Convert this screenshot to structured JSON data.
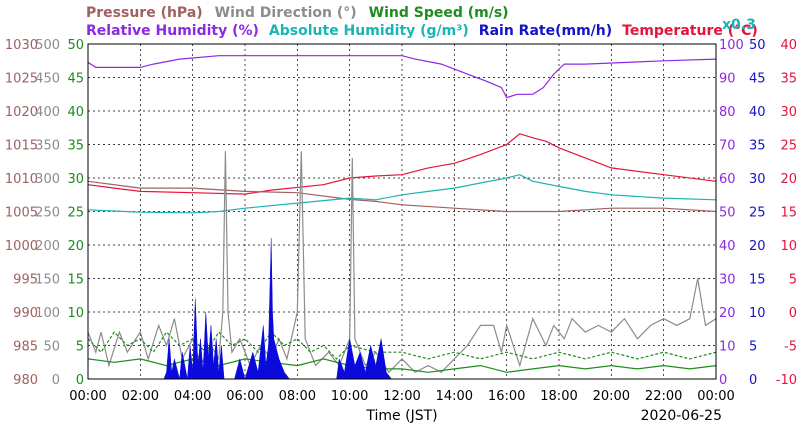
{
  "chart_data": {
    "type": "line",
    "legend_row1": [
      {
        "text": "Pressure (hPa)",
        "color": "#a06060"
      },
      {
        "text": "Wind Direction (°)",
        "color": "#8c8c8c"
      },
      {
        "text": "Wind Speed (m/s)",
        "color": "#1e8c1e"
      }
    ],
    "legend_row2": [
      {
        "text": "Relative Humidity (%)",
        "color": "#8c28e6"
      },
      {
        "text": "Absolute Humidity (g/m³)",
        "color": "#19b4b4"
      },
      {
        "text": "Rain Rate(mm/h)",
        "color": "#1414c8"
      },
      {
        "text": "Temperature (°C)",
        "color": "#e6143c"
      }
    ],
    "rain_scale_note": "x0.3",
    "xlabel": "Time (JST)",
    "date": "2020-06-25",
    "x_ticks": [
      "00:00",
      "02:00",
      "04:00",
      "06:00",
      "08:00",
      "10:00",
      "12:00",
      "14:00",
      "16:00",
      "18:00",
      "20:00",
      "22:00",
      "00:00"
    ],
    "x_range_hours": [
      0,
      24
    ],
    "grid": true,
    "axes": {
      "pressure": {
        "min": 980,
        "max": 1030,
        "ticks": [
          "1030",
          "1025",
          "1020",
          "1015",
          "1010",
          "1005",
          "1000",
          "995",
          "990",
          "985",
          "980"
        ],
        "color": "#a06060"
      },
      "wind_direction": {
        "min": 0,
        "max": 500,
        "ticks": [
          "500",
          "450",
          "400",
          "350",
          "300",
          "250",
          "200",
          "150",
          "100",
          "50",
          "0"
        ],
        "color": "#8c8c8c"
      },
      "wind_speed": {
        "min": 0,
        "max": 50,
        "ticks": [
          "50",
          "45",
          "40",
          "35",
          "30",
          "25",
          "20",
          "15",
          "10",
          "5",
          "0"
        ],
        "color": "#1e8c1e"
      },
      "humidity": {
        "min": 0,
        "max": 100,
        "ticks": [
          "100",
          "90",
          "80",
          "70",
          "60",
          "50",
          "40",
          "30",
          "20",
          "10",
          "0"
        ],
        "color": "#8c28e6"
      },
      "rain_rate": {
        "min": 0,
        "max": 50,
        "ticks": [
          "50",
          "45",
          "40",
          "35",
          "30",
          "25",
          "20",
          "15",
          "10",
          "5",
          "0"
        ],
        "color": "#1414c8"
      },
      "temperature": {
        "min": -10,
        "max": 40,
        "ticks": [
          "40",
          "35",
          "30",
          "25",
          "20",
          "15",
          "10",
          "5",
          "0",
          "-5",
          "-10"
        ],
        "color": "#e6143c"
      }
    },
    "series": [
      {
        "name": "Relative Humidity (%)",
        "axis": "humidity",
        "color": "#8c28e6",
        "points": [
          [
            0,
            94.5
          ],
          [
            0.3,
            93
          ],
          [
            2,
            93
          ],
          [
            2.5,
            94
          ],
          [
            3.5,
            95.5
          ],
          [
            5,
            96.5
          ],
          [
            10,
            96.5
          ],
          [
            12,
            96.5
          ],
          [
            12.5,
            95.5
          ],
          [
            13.5,
            94
          ],
          [
            14.5,
            91
          ],
          [
            15.2,
            89
          ],
          [
            15.8,
            87
          ],
          [
            16,
            84
          ],
          [
            16.4,
            85
          ],
          [
            17,
            85
          ],
          [
            17.4,
            87
          ],
          [
            17.8,
            91
          ],
          [
            18.2,
            94
          ],
          [
            19,
            94
          ],
          [
            22,
            95
          ],
          [
            24,
            95.5
          ]
        ]
      },
      {
        "name": "Temperature (°C)",
        "axis": "temperature",
        "color": "#e6143c",
        "points": [
          [
            0,
            19
          ],
          [
            1,
            18.5
          ],
          [
            2,
            18
          ],
          [
            4,
            17.8
          ],
          [
            6,
            17.6
          ],
          [
            7,
            18.2
          ],
          [
            9,
            19
          ],
          [
            10,
            20
          ],
          [
            11,
            20.3
          ],
          [
            12,
            20.5
          ],
          [
            13,
            21.5
          ],
          [
            14,
            22.2
          ],
          [
            15,
            23.5
          ],
          [
            16,
            25
          ],
          [
            16.5,
            26.6
          ],
          [
            17,
            26
          ],
          [
            17.5,
            25.5
          ],
          [
            18,
            24.5
          ],
          [
            19,
            23
          ],
          [
            20,
            21.5
          ],
          [
            22,
            20.5
          ],
          [
            24,
            19.5
          ]
        ]
      },
      {
        "name": "Pressure (hPa)",
        "axis": "pressure",
        "color": "#a06060",
        "points": [
          [
            0,
            1009.5
          ],
          [
            2,
            1008.5
          ],
          [
            4,
            1008.5
          ],
          [
            6,
            1008
          ],
          [
            8,
            1007.8
          ],
          [
            10,
            1006.8
          ],
          [
            11,
            1006.5
          ],
          [
            12,
            1006
          ],
          [
            14,
            1005.5
          ],
          [
            16,
            1005
          ],
          [
            18,
            1005
          ],
          [
            20,
            1005.5
          ],
          [
            22,
            1005.5
          ],
          [
            24,
            1005
          ]
        ]
      },
      {
        "name": "Absolute Humidity (g/m³)",
        "axis": "humidity",
        "color": "#19b4b4",
        "points": [
          [
            0,
            50.5
          ],
          [
            2,
            49.8
          ],
          [
            4,
            49.6
          ],
          [
            5,
            50
          ],
          [
            6,
            51
          ],
          [
            8,
            52.5
          ],
          [
            10,
            54
          ],
          [
            11,
            53.5
          ],
          [
            12,
            55
          ],
          [
            13,
            56
          ],
          [
            14,
            57
          ],
          [
            15,
            58.5
          ],
          [
            16,
            60
          ],
          [
            16.5,
            61
          ],
          [
            17,
            59
          ],
          [
            18,
            57.5
          ],
          [
            19,
            56
          ],
          [
            20,
            55
          ],
          [
            22,
            54
          ],
          [
            24,
            53.5
          ]
        ]
      },
      {
        "name": "Wind Direction (°)",
        "axis": "wind_direction",
        "color": "#8c8c8c",
        "points": [
          [
            0,
            70
          ],
          [
            0.3,
            40
          ],
          [
            0.5,
            70
          ],
          [
            0.8,
            20
          ],
          [
            1.2,
            70
          ],
          [
            1.5,
            40
          ],
          [
            2,
            70
          ],
          [
            2.3,
            30
          ],
          [
            2.7,
            80
          ],
          [
            3,
            50
          ],
          [
            3.3,
            90
          ],
          [
            3.6,
            30
          ],
          [
            4,
            60
          ],
          [
            4.3,
            20
          ],
          [
            4.7,
            50
          ],
          [
            5,
            30
          ],
          [
            5.15,
            100
          ],
          [
            5.25,
            340
          ],
          [
            5.35,
            100
          ],
          [
            5.5,
            40
          ],
          [
            5.8,
            60
          ],
          [
            6.2,
            20
          ],
          [
            6.6,
            50
          ],
          [
            7,
            30
          ],
          [
            7.3,
            60
          ],
          [
            7.6,
            30
          ],
          [
            8,
            100
          ],
          [
            8.15,
            340
          ],
          [
            8.3,
            60
          ],
          [
            8.7,
            20
          ],
          [
            9.2,
            40
          ],
          [
            9.6,
            20
          ],
          [
            10,
            60
          ],
          [
            10.1,
            330
          ],
          [
            10.2,
            60
          ],
          [
            10.6,
            20
          ],
          [
            11,
            40
          ],
          [
            11.5,
            10
          ],
          [
            12,
            30
          ],
          [
            12.5,
            10
          ],
          [
            13,
            20
          ],
          [
            13.5,
            10
          ],
          [
            14,
            30
          ],
          [
            14.5,
            50
          ],
          [
            15,
            80
          ],
          [
            15.5,
            80
          ],
          [
            15.8,
            40
          ],
          [
            16,
            80
          ],
          [
            16.5,
            20
          ],
          [
            17,
            90
          ],
          [
            17.5,
            50
          ],
          [
            17.8,
            80
          ],
          [
            18.2,
            60
          ],
          [
            18.5,
            90
          ],
          [
            19,
            70
          ],
          [
            19.5,
            80
          ],
          [
            20,
            70
          ],
          [
            20.5,
            90
          ],
          [
            21,
            60
          ],
          [
            21.5,
            80
          ],
          [
            22,
            90
          ],
          [
            22.5,
            80
          ],
          [
            23,
            90
          ],
          [
            23.3,
            150
          ],
          [
            23.6,
            80
          ],
          [
            24,
            90
          ]
        ]
      },
      {
        "name": "Wind Speed (m/s)",
        "axis": "wind_speed",
        "color": "#1e8c1e",
        "points": [
          [
            0,
            3
          ],
          [
            1,
            2.5
          ],
          [
            2,
            3
          ],
          [
            3,
            2
          ],
          [
            4,
            3
          ],
          [
            5,
            2
          ],
          [
            6,
            3
          ],
          [
            7,
            2.5
          ],
          [
            8,
            2
          ],
          [
            9,
            3
          ],
          [
            10,
            2
          ],
          [
            11,
            1.5
          ],
          [
            12,
            1.5
          ],
          [
            13,
            1
          ],
          [
            14,
            1.5
          ],
          [
            15,
            2
          ],
          [
            16,
            1
          ],
          [
            17,
            1.5
          ],
          [
            18,
            2
          ],
          [
            19,
            1.5
          ],
          [
            20,
            2
          ],
          [
            21,
            1.5
          ],
          [
            22,
            2
          ],
          [
            23,
            1.5
          ],
          [
            24,
            2
          ]
        ]
      },
      {
        "name": "Wind Speed gust",
        "axis": "wind_speed",
        "color": "#1e8c1e",
        "dashed": true,
        "points": [
          [
            0,
            6
          ],
          [
            0.5,
            4
          ],
          [
            1,
            7
          ],
          [
            1.5,
            5
          ],
          [
            2,
            6
          ],
          [
            2.5,
            4
          ],
          [
            3,
            7
          ],
          [
            3.5,
            5
          ],
          [
            4,
            6
          ],
          [
            4.5,
            4
          ],
          [
            5,
            7
          ],
          [
            5.5,
            5
          ],
          [
            6,
            6
          ],
          [
            6.5,
            4
          ],
          [
            7,
            7
          ],
          [
            7.5,
            5
          ],
          [
            8,
            6
          ],
          [
            8.5,
            4
          ],
          [
            9,
            5
          ],
          [
            9.5,
            3
          ],
          [
            10,
            5
          ],
          [
            11,
            4
          ],
          [
            12,
            4
          ],
          [
            13,
            3
          ],
          [
            14,
            4
          ],
          [
            15,
            3
          ],
          [
            16,
            4
          ],
          [
            17,
            3
          ],
          [
            18,
            4
          ],
          [
            19,
            3
          ],
          [
            20,
            4
          ],
          [
            21,
            3
          ],
          [
            22,
            4
          ],
          [
            23,
            3
          ],
          [
            24,
            4
          ]
        ]
      },
      {
        "name": "Rain Rate(mm/h)",
        "axis": "rain_rate",
        "color": "#0a0adc",
        "fill": true,
        "points": [
          [
            0,
            0
          ],
          [
            2.9,
            0
          ],
          [
            3,
            1
          ],
          [
            3.1,
            6
          ],
          [
            3.2,
            1
          ],
          [
            3.3,
            3
          ],
          [
            3.5,
            0
          ],
          [
            3.6,
            4
          ],
          [
            3.8,
            0
          ],
          [
            3.9,
            5
          ],
          [
            4.0,
            1
          ],
          [
            4.1,
            12
          ],
          [
            4.2,
            2
          ],
          [
            4.3,
            6
          ],
          [
            4.4,
            1
          ],
          [
            4.5,
            10
          ],
          [
            4.6,
            3
          ],
          [
            4.7,
            8
          ],
          [
            4.8,
            2
          ],
          [
            4.9,
            6
          ],
          [
            5.0,
            1
          ],
          [
            5.1,
            5
          ],
          [
            5.2,
            0
          ],
          [
            5.6,
            0
          ],
          [
            5.8,
            3
          ],
          [
            6.0,
            0
          ],
          [
            6.3,
            4
          ],
          [
            6.5,
            1
          ],
          [
            6.7,
            8
          ],
          [
            6.8,
            2
          ],
          [
            6.9,
            5
          ],
          [
            7.0,
            21
          ],
          [
            7.05,
            10
          ],
          [
            7.1,
            6
          ],
          [
            7.3,
            3
          ],
          [
            7.5,
            1
          ],
          [
            7.7,
            0
          ],
          [
            9.5,
            0
          ],
          [
            9.6,
            3
          ],
          [
            9.8,
            1
          ],
          [
            10.0,
            6
          ],
          [
            10.2,
            2
          ],
          [
            10.4,
            4
          ],
          [
            10.6,
            1
          ],
          [
            10.8,
            5
          ],
          [
            11.0,
            2
          ],
          [
            11.2,
            6
          ],
          [
            11.4,
            1
          ],
          [
            11.6,
            0
          ],
          [
            24,
            0
          ]
        ]
      }
    ]
  }
}
